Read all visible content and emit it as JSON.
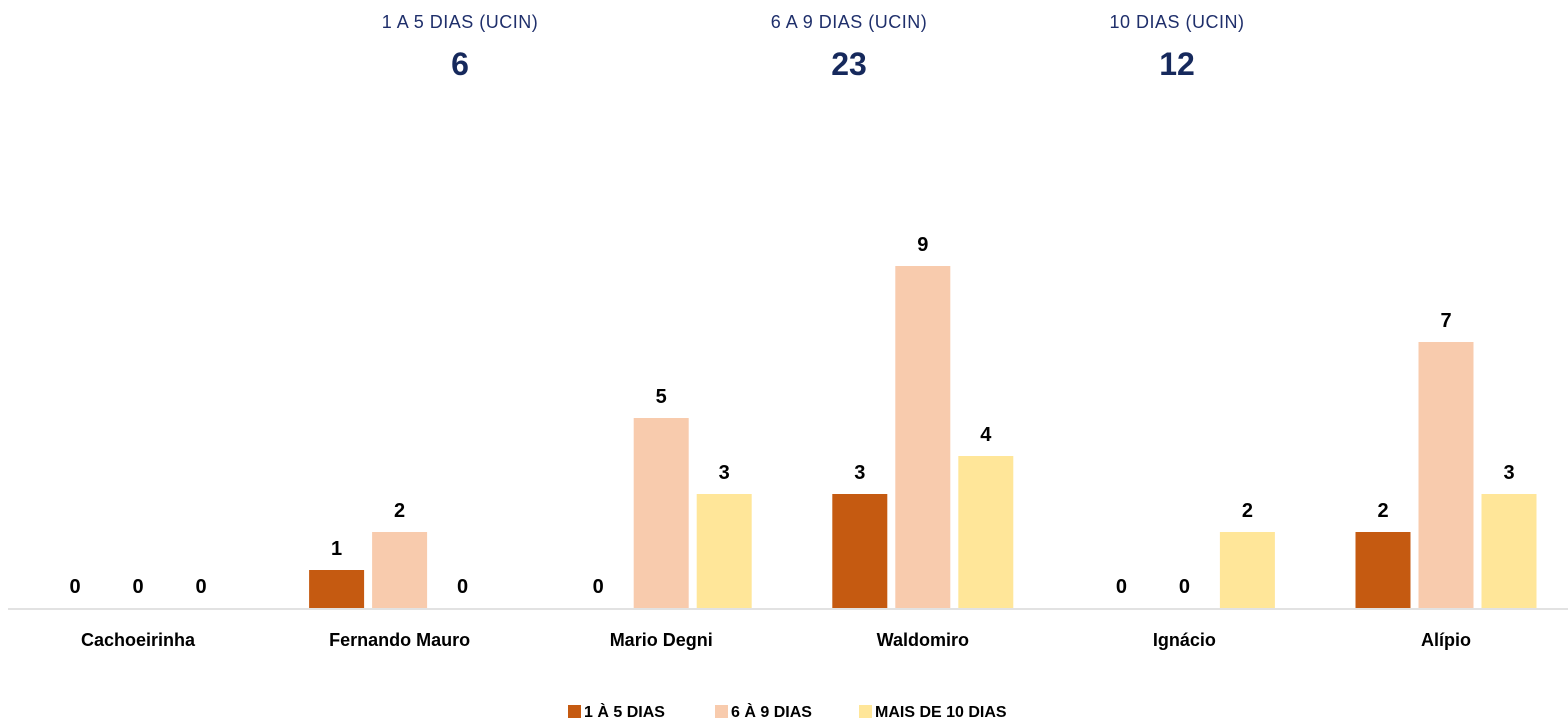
{
  "kpis": [
    {
      "label": "1 A 5 DIAS (UCIN)",
      "value": "6"
    },
    {
      "label": "6 A 9 DIAS (UCIN)",
      "value": "23"
    },
    {
      "label": "10 DIAS (UCIN)",
      "value": "12"
    }
  ],
  "colors": {
    "s0": "#c55a11",
    "s1": "#f8cbad",
    "s2": "#ffe699",
    "kpi_text": "#1f2f6b"
  },
  "chart_data": {
    "type": "bar",
    "categories": [
      "Cachoeirinha",
      "Fernando Mauro",
      "Mario Degni",
      "Waldomiro",
      "Ignácio",
      "Alípio"
    ],
    "series": [
      {
        "name": "1 À  5 DIAS",
        "values": [
          0,
          1,
          0,
          3,
          0,
          2
        ]
      },
      {
        "name": "6 À 9 DIAS",
        "values": [
          0,
          2,
          5,
          9,
          0,
          7
        ]
      },
      {
        "name": "MAIS DE 10 DIAS",
        "values": [
          0,
          0,
          3,
          4,
          2,
          3
        ]
      }
    ],
    "ylim": [
      0,
      9
    ],
    "grid": false,
    "legend": "bottom",
    "data_labels": true
  }
}
